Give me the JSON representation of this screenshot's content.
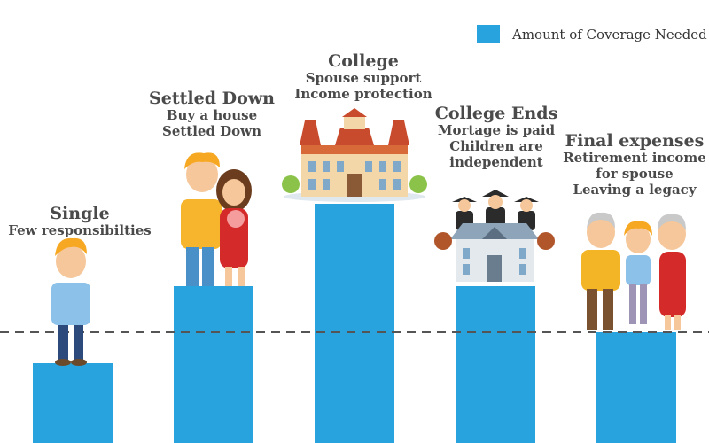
{
  "chart_data": {
    "type": "bar",
    "categories": [
      "Single",
      "Settled Down",
      "College",
      "College Ends",
      "Final expenses"
    ],
    "values": [
      90,
      177,
      270,
      177,
      125
    ],
    "threshold": 125,
    "series": [
      {
        "name": "Amount of Coverage Needed",
        "values": [
          90,
          177,
          270,
          177,
          125
        ]
      }
    ],
    "ylim": [
      0,
      500
    ],
    "xlabel": "",
    "ylabel": "",
    "legend_position": "top-right",
    "colors": {
      "bar": "#29a3de",
      "text": "#4a4a4a",
      "dashed_line": "#555555"
    }
  },
  "stages": [
    {
      "title": "Single",
      "lines": [
        "Few responsibilties"
      ]
    },
    {
      "title": "Settled Down",
      "lines": [
        "Buy a house",
        "Settled Down"
      ]
    },
    {
      "title": "College",
      "lines": [
        "Spouse support",
        "Income protection"
      ]
    },
    {
      "title": "College Ends",
      "lines": [
        "Mortage is paid",
        "Children are",
        "independent"
      ]
    },
    {
      "title": "Final expenses",
      "lines": [
        "Retirement income",
        "for spouse",
        "Leaving a legacy"
      ]
    }
  ],
  "illustrations": [
    "boy-illustration",
    "young-couple-illustration",
    "college-building-illustration",
    "graduates-school-illustration",
    "grandparents-family-illustration"
  ]
}
